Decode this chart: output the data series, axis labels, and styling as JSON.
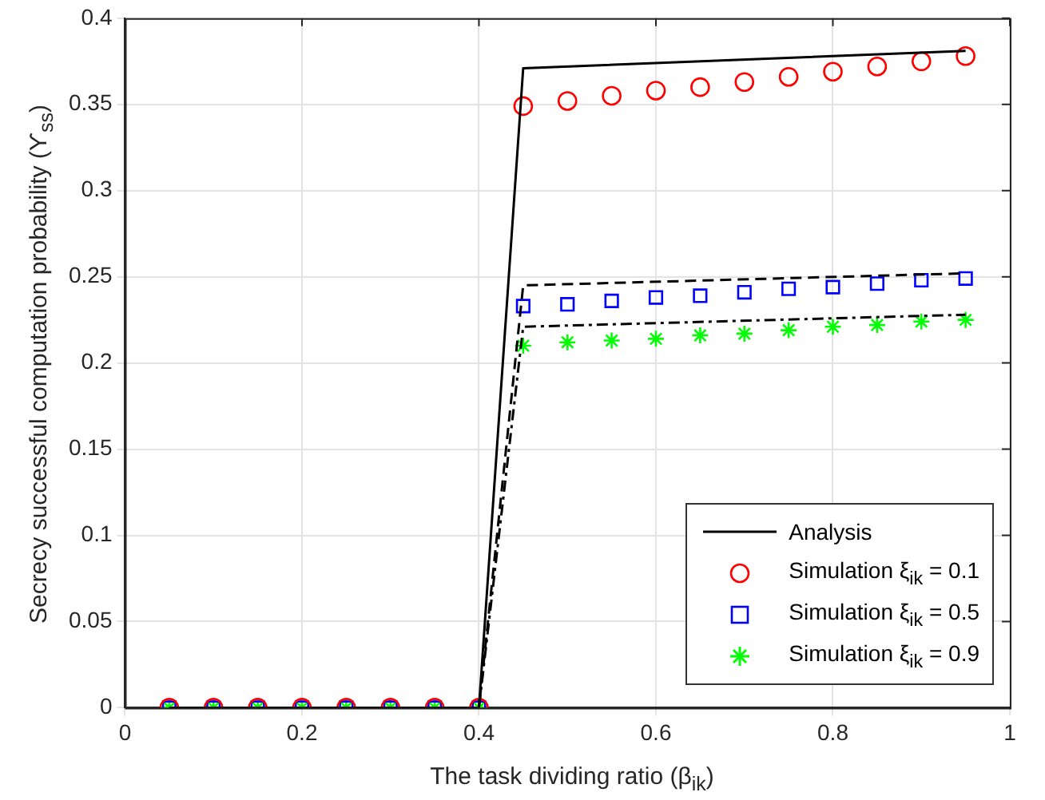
{
  "chart_data": {
    "type": "line",
    "xlabel": "The task dividing ratio (β$_{ik}$)",
    "ylabel": "Secrecy successful computation probability (ϒ$_{ss}$)",
    "xlim": [
      0,
      1
    ],
    "xticks": [
      0,
      0.2,
      0.4,
      0.6,
      0.8,
      1
    ],
    "ylim": [
      0,
      0.4
    ],
    "yticks": [
      0,
      0.05,
      0.1,
      0.15,
      0.2,
      0.25,
      0.3,
      0.35,
      0.4
    ],
    "grid": true,
    "legend": "bottom right",
    "series": [
      {
        "name": "Analysis",
        "color": "#000000",
        "line_style": "solid",
        "marker": "none",
        "x": [
          0.05,
          0.1,
          0.15,
          0.2,
          0.25,
          0.3,
          0.35,
          0.4,
          0.45,
          0.95
        ],
        "values": [
          0,
          0,
          0,
          0,
          0,
          0,
          0,
          0,
          0.371,
          0.381
        ]
      },
      {
        "color": "#000000",
        "line_style": "dashed",
        "marker": "none",
        "x": [
          0.05,
          0.1,
          0.15,
          0.2,
          0.25,
          0.3,
          0.35,
          0.4,
          0.45,
          0.95
        ],
        "values": [
          0,
          0,
          0,
          0,
          0,
          0,
          0,
          0,
          0.245,
          0.252
        ]
      },
      {
        "color": "#000000",
        "line_style": "dashdot",
        "marker": "none",
        "x": [
          0.05,
          0.1,
          0.15,
          0.2,
          0.25,
          0.3,
          0.35,
          0.4,
          0.45,
          0.95
        ],
        "values": [
          0,
          0,
          0,
          0,
          0,
          0,
          0,
          0,
          0.221,
          0.228
        ]
      },
      {
        "name": "Simulation ξ$_{ik}$ = 0.1",
        "type": "scatter",
        "color": "#ff0000",
        "marker": "circle",
        "x": [
          0.05,
          0.1,
          0.15,
          0.2,
          0.25,
          0.3,
          0.35,
          0.4,
          0.45,
          0.5,
          0.55,
          0.6,
          0.65,
          0.7,
          0.75,
          0.8,
          0.85,
          0.9,
          0.95
        ],
        "values": [
          0,
          0,
          0,
          0,
          0,
          0,
          0,
          0,
          0.349,
          0.352,
          0.355,
          0.358,
          0.36,
          0.363,
          0.366,
          0.369,
          0.372,
          0.375,
          0.378
        ]
      },
      {
        "name": "Simulation ξ$_{ik}$ = 0.5",
        "type": "scatter",
        "color": "#0000ff",
        "marker": "square",
        "x": [
          0.05,
          0.1,
          0.15,
          0.2,
          0.25,
          0.3,
          0.35,
          0.4,
          0.45,
          0.5,
          0.55,
          0.6,
          0.65,
          0.7,
          0.75,
          0.8,
          0.85,
          0.9,
          0.95
        ],
        "values": [
          0,
          0,
          0,
          0,
          0,
          0,
          0,
          0,
          0.233,
          0.234,
          0.236,
          0.238,
          0.239,
          0.241,
          0.243,
          0.244,
          0.246,
          0.248,
          0.249
        ]
      },
      {
        "name": "Simulation ξ$_{ik}$ = 0.9",
        "type": "scatter",
        "color": "#00ff00",
        "marker": "cross",
        "x": [
          0.05,
          0.1,
          0.15,
          0.2,
          0.25,
          0.3,
          0.35,
          0.4,
          0.45,
          0.5,
          0.55,
          0.6,
          0.65,
          0.7,
          0.75,
          0.8,
          0.85,
          0.9,
          0.95
        ],
        "values": [
          0,
          0,
          0,
          0,
          0,
          0,
          0,
          0,
          0.21,
          0.212,
          0.213,
          0.214,
          0.216,
          0.217,
          0.219,
          0.221,
          0.222,
          0.224,
          0.225
        ]
      }
    ]
  }
}
